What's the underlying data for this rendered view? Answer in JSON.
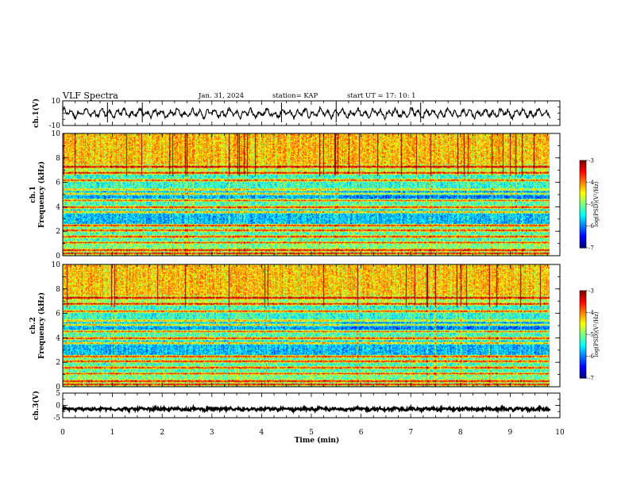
{
  "header": {
    "title": "VLF Spectra",
    "date": "Jan. 31, 2024",
    "station": "station= KAP",
    "start": "start  UT  =   17: 10: 1"
  },
  "chart_data": [
    {
      "type": "line",
      "name": "ch1-waveform",
      "ylabel": "ch.1(V)",
      "ylim": [
        -10,
        10
      ],
      "ytick_labels": [
        "-10",
        "10"
      ],
      "xlim": [
        0,
        9.8
      ],
      "mean": 0,
      "amplitude": 4
    },
    {
      "type": "heatmap",
      "name": "ch1-spectrogram",
      "ylabel": "ch.1",
      "ylabel2": "Frequency (kHz)",
      "ylim": [
        0,
        10
      ],
      "ytick_labels": [
        "0",
        "2",
        "4",
        "6",
        "8",
        "10"
      ],
      "xlim": [
        0,
        9.8
      ],
      "colorscale": {
        "min": -7,
        "max": -3,
        "tick_labels": [
          "-3",
          "-4",
          "-5",
          "-6",
          "-7"
        ],
        "label": "log(PSD)(V²/Hz)"
      },
      "spectral_lines_khz": [
        0.2,
        0.5,
        1.1,
        1.6,
        2.1,
        2.5,
        3.6,
        4.0,
        4.6,
        5.1,
        5.4,
        6.2,
        6.8,
        7.3
      ]
    },
    {
      "type": "heatmap",
      "name": "ch2-spectrogram",
      "ylabel": "ch.2",
      "ylabel2": "Frequency (kHz)",
      "ylim": [
        0,
        10
      ],
      "ytick_labels": [
        "0",
        "2",
        "4",
        "6",
        "8",
        "10"
      ],
      "xlim": [
        0,
        9.8
      ],
      "colorscale": {
        "min": -7,
        "max": -3,
        "tick_labels": [
          "-3",
          "-4",
          "-5",
          "-6",
          "-7"
        ],
        "label": "log(PSD)(V²/Hz)"
      },
      "spectral_lines_khz": [
        0.2,
        0.5,
        1.1,
        1.6,
        2.1,
        2.5,
        3.6,
        4.0,
        4.6,
        5.1,
        5.4,
        6.2,
        6.8,
        7.3
      ]
    },
    {
      "type": "line",
      "name": "ch3-waveform",
      "ylabel": "ch.3(V)",
      "ylim": [
        -5,
        5
      ],
      "ytick_labels": [
        "-5",
        "0",
        "5"
      ],
      "xlim": [
        0,
        9.8
      ],
      "mean": -1.5,
      "amplitude": 0.4
    }
  ],
  "x_axis": {
    "label": "Time  (min)",
    "range": [
      0,
      10
    ],
    "tick_labels": [
      "0",
      "1",
      "2",
      "3",
      "4",
      "5",
      "6",
      "7",
      "8",
      "9",
      "10"
    ]
  }
}
